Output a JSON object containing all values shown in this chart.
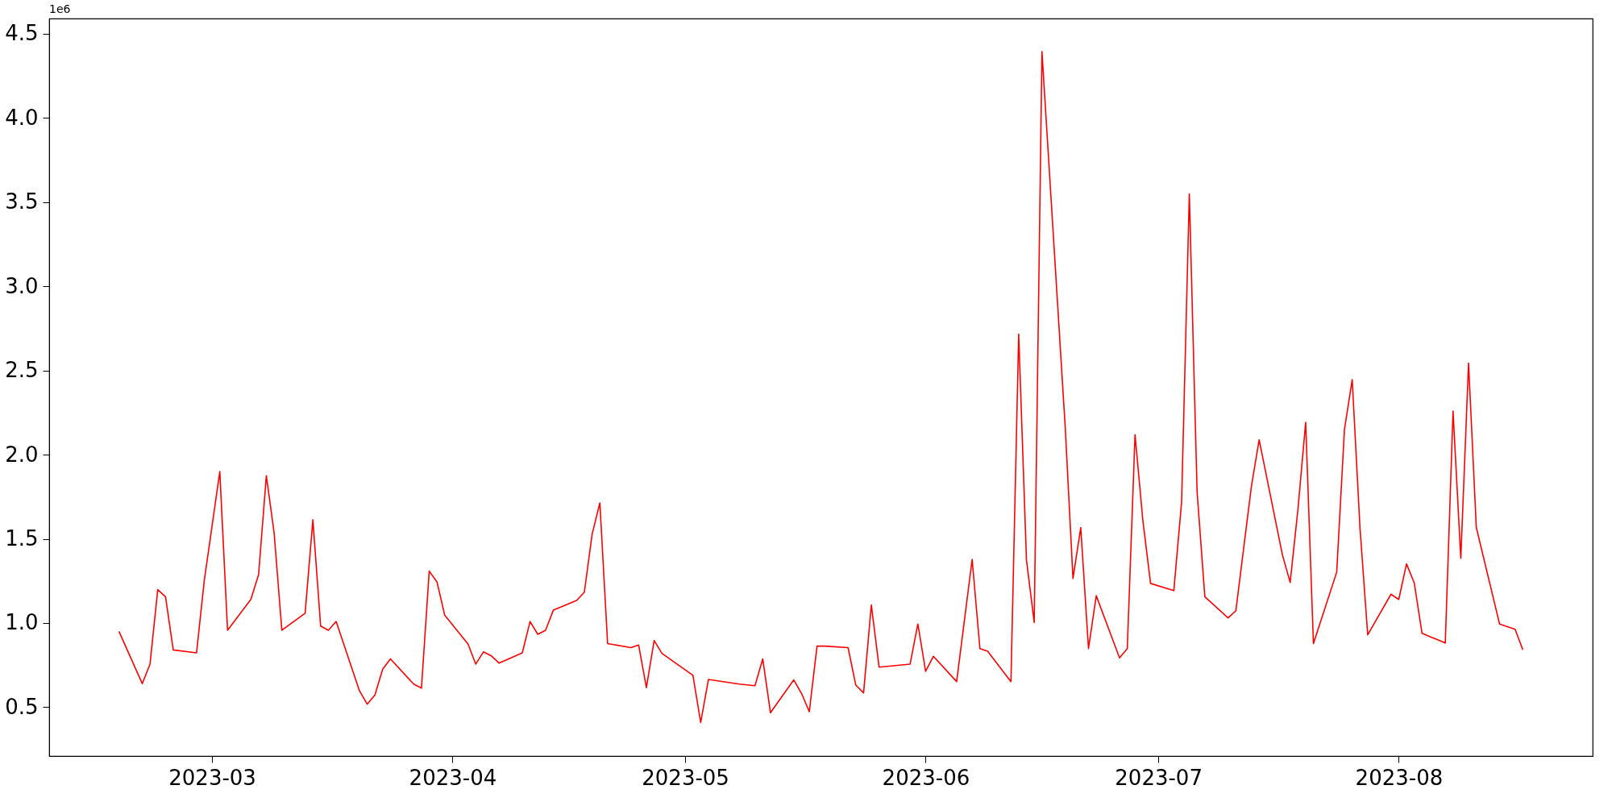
{
  "chart_data": {
    "type": "line",
    "annotations": [
      "1e6"
    ],
    "x": [
      "2023-02-17",
      "2023-02-20",
      "2023-02-21",
      "2023-02-22",
      "2023-02-23",
      "2023-02-24",
      "2023-02-27",
      "2023-02-28",
      "2023-03-02",
      "2023-03-03",
      "2023-03-06",
      "2023-03-07",
      "2023-03-08",
      "2023-03-09",
      "2023-03-10",
      "2023-03-13",
      "2023-03-14",
      "2023-03-15",
      "2023-03-16",
      "2023-03-17",
      "2023-03-20",
      "2023-03-21",
      "2023-03-22",
      "2023-03-23",
      "2023-03-24",
      "2023-03-27",
      "2023-03-28",
      "2023-03-29",
      "2023-03-30",
      "2023-03-31",
      "2023-04-03",
      "2023-04-04",
      "2023-04-05",
      "2023-04-06",
      "2023-04-07",
      "2023-04-10",
      "2023-04-11",
      "2023-04-12",
      "2023-04-13",
      "2023-04-14",
      "2023-04-17",
      "2023-04-18",
      "2023-04-19",
      "2023-04-20",
      "2023-04-21",
      "2023-04-24",
      "2023-04-25",
      "2023-04-26",
      "2023-04-27",
      "2023-04-28",
      "2023-05-02",
      "2023-05-03",
      "2023-05-04",
      "2023-05-08",
      "2023-05-10",
      "2023-05-11",
      "2023-05-12",
      "2023-05-15",
      "2023-05-16",
      "2023-05-17",
      "2023-05-18",
      "2023-05-19",
      "2023-05-22",
      "2023-05-23",
      "2023-05-24",
      "2023-05-25",
      "2023-05-26",
      "2023-05-30",
      "2023-05-31",
      "2023-06-01",
      "2023-06-02",
      "2023-06-05",
      "2023-06-07",
      "2023-06-08",
      "2023-06-09",
      "2023-06-12",
      "2023-06-13",
      "2023-06-14",
      "2023-06-15",
      "2023-06-16",
      "2023-06-19",
      "2023-06-20",
      "2023-06-21",
      "2023-06-22",
      "2023-06-23",
      "2023-06-26",
      "2023-06-27",
      "2023-06-28",
      "2023-06-29",
      "2023-06-30",
      "2023-07-03",
      "2023-07-04",
      "2023-07-05",
      "2023-07-06",
      "2023-07-07",
      "2023-07-10",
      "2023-07-11",
      "2023-07-13",
      "2023-07-14",
      "2023-07-17",
      "2023-07-18",
      "2023-07-19",
      "2023-07-20",
      "2023-07-21",
      "2023-07-24",
      "2023-07-25",
      "2023-07-26",
      "2023-07-27",
      "2023-07-28",
      "2023-07-31",
      "2023-08-01",
      "2023-08-02",
      "2023-08-03",
      "2023-08-04",
      "2023-08-07",
      "2023-08-08",
      "2023-08-09",
      "2023-08-10",
      "2023-08-11",
      "2023-08-14",
      "2023-08-16",
      "2023-08-17"
    ],
    "series": [
      {
        "color": "#ff0000",
        "values": [
          0.95,
          0.64,
          0.756,
          1.198,
          1.156,
          0.84,
          0.823,
          1.253,
          1.899,
          0.957,
          1.14,
          1.287,
          1.875,
          1.537,
          0.957,
          1.058,
          1.613,
          0.982,
          0.957,
          1.009,
          0.598,
          0.518,
          0.573,
          0.726,
          0.787,
          0.637,
          0.613,
          1.308,
          1.244,
          1.046,
          0.875,
          0.756,
          0.829,
          0.805,
          0.762,
          0.823,
          1.009,
          0.933,
          0.957,
          1.076,
          1.134,
          1.183,
          1.527,
          1.713,
          0.878,
          0.854,
          0.869,
          0.616,
          0.896,
          0.82,
          0.689,
          0.409,
          0.665,
          0.637,
          0.628,
          0.787,
          0.467,
          0.662,
          0.582,
          0.473,
          0.863,
          0.863,
          0.854,
          0.631,
          0.585,
          1.107,
          0.738,
          0.756,
          0.994,
          0.713,
          0.802,
          0.652,
          1.378,
          0.848,
          0.832,
          0.652,
          2.716,
          1.375,
          1.003,
          4.393,
          2.162,
          1.265,
          1.567,
          0.848,
          1.162,
          0.793,
          0.848,
          2.119,
          1.613,
          1.235,
          1.192,
          1.717,
          3.549,
          1.78,
          1.156,
          1.03,
          1.073,
          1.811,
          2.088,
          1.405,
          1.241,
          1.674,
          2.192,
          0.878,
          1.302,
          2.149,
          2.445,
          1.567,
          0.93,
          1.171,
          1.14,
          1.351,
          1.238,
          0.939,
          0.881,
          2.259,
          1.384,
          2.543,
          1.567,
          0.994,
          0.963,
          0.841
        ]
      }
    ],
    "xlim": [
      "2023-02-08",
      "2023-08-26"
    ],
    "xticks": [
      "2023-03",
      "2023-04",
      "2023-05",
      "2023-06",
      "2023-07",
      "2023-08"
    ],
    "ylim": [
      0.21,
      4.59
    ],
    "yticks": [
      0.5,
      {
        "value": 1,
        "label": "1.0"
      },
      1.5,
      {
        "value": 2,
        "label": "2.0"
      },
      2.5,
      {
        "value": 3,
        "label": "3.0"
      },
      3.5,
      {
        "value": 4,
        "label": "4.0"
      },
      4.5
    ],
    "grid": false,
    "line_style": "solid",
    "marker": "none"
  }
}
